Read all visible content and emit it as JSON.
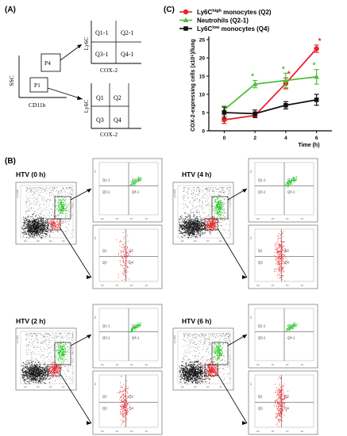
{
  "panel_a": {
    "letter": "(A)",
    "ssc": "SSC",
    "cd11b": "CD11b",
    "p4": "P4",
    "p1": "P1",
    "upper_ylabel": "Ly6C",
    "upper_xlabel": "COX-2",
    "upper_quads": [
      "Q1-1",
      "Q2-1",
      "Q3-1",
      "Q4-1"
    ],
    "lower_ylabel": "Ly6C",
    "lower_xlabel": "COX-2",
    "lower_quads": [
      "Q1",
      "Q2",
      "Q3",
      "Q4"
    ]
  },
  "panel_b": {
    "letter": "(B)",
    "gate_p4": "P4",
    "panels": [
      {
        "title": "HTV (0 h)"
      },
      {
        "title": "HTV (4 h)"
      },
      {
        "title": "HTV (2 h)"
      },
      {
        "title": "HTV (6 h)"
      }
    ],
    "upper_quads": [
      "Q1-1",
      "Q2-1",
      "Q3-1",
      "Q4-1"
    ],
    "lower_quads": [
      "Q1",
      "Q2",
      "Q3",
      "Q4"
    ],
    "axis_tick_labels": [
      "10²",
      "10³",
      "10⁴",
      "10⁵"
    ],
    "ssc_tick_label": "(x 1,000)",
    "colors": {
      "neutrophil": "#22cc22",
      "monocyte": "#e8242a",
      "background": "#111111"
    }
  },
  "chart_data": {
    "type": "line",
    "panel_letter": "(C)",
    "title": "",
    "xlabel": "Time (h)",
    "ylabel": "COX-2-expressing cells (x10⁵)/lung",
    "x": [
      0,
      2,
      4,
      6
    ],
    "xticks": [
      "0",
      "2",
      "4",
      "6"
    ],
    "ylim": [
      0,
      25
    ],
    "yticks": [
      "0",
      "5",
      "10",
      "15",
      "20",
      "25"
    ],
    "series": [
      {
        "name": "Ly6Chigh monocytes (Q2)",
        "name_main": "Ly6C",
        "name_sup": "high",
        "name_tail": " monocytes (Q2)",
        "color": "#e8242a",
        "marker": "circle",
        "values": [
          3.0,
          4.2,
          13.0,
          22.5
        ],
        "errors": [
          1.0,
          0.6,
          1.5,
          1.0
        ],
        "significance": [
          "",
          "",
          "*",
          "*"
        ]
      },
      {
        "name": "Neutrohils (Q2-1)",
        "name_main": "Neutrohils (Q2-1)",
        "name_sup": "",
        "name_tail": "",
        "color": "#4fbf3a",
        "marker": "triangle",
        "values": [
          5.8,
          12.8,
          13.8,
          14.8
        ],
        "errors": [
          1.0,
          1.0,
          2.0,
          2.0
        ],
        "significance": [
          "",
          "*",
          "*",
          "*"
        ]
      },
      {
        "name": "Ly6Clow monocytes (Q4)",
        "name_main": "Ly6C",
        "name_sup": "low",
        "name_tail": " monocytes (Q4)",
        "color": "#111111",
        "marker": "square",
        "values": [
          5.0,
          4.7,
          7.0,
          8.5
        ],
        "errors": [
          1.5,
          1.0,
          1.0,
          1.5
        ],
        "significance": [
          "",
          "",
          "",
          ""
        ]
      }
    ],
    "legend": "top-left",
    "grid": false
  }
}
